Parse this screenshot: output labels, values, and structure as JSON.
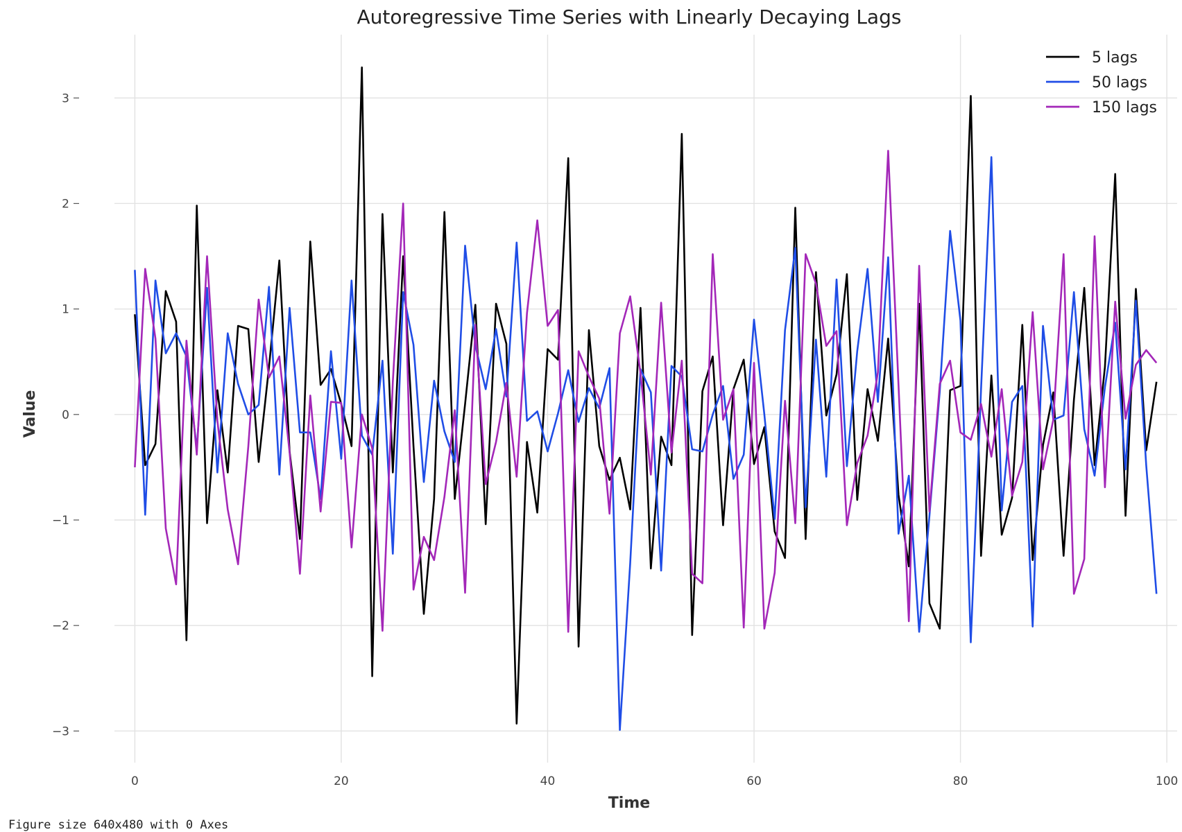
{
  "footer": "Figure size 640x480 with 0 Axes",
  "chart_data": {
    "type": "line",
    "title": "Autoregressive Time Series with Linearly Decaying Lags",
    "xlabel": "Time",
    "ylabel": "Value",
    "xlim": [
      -5,
      101
    ],
    "ylim": [
      -3.3,
      3.6
    ],
    "xticks": [
      0,
      20,
      40,
      60,
      80,
      100
    ],
    "yticks": [
      -3,
      -2,
      -1,
      0,
      1,
      2,
      3
    ],
    "ytick_labels": [
      "−3",
      "−2",
      "−1",
      "0",
      "1",
      "2",
      "3"
    ],
    "grid": true,
    "legend_position": "top-right",
    "x": [
      0,
      1,
      2,
      3,
      4,
      5,
      6,
      7,
      8,
      9,
      10,
      11,
      12,
      13,
      14,
      15,
      16,
      17,
      18,
      19,
      20,
      21,
      22,
      23,
      24,
      25,
      26,
      27,
      28,
      29,
      30,
      31,
      32,
      33,
      34,
      35,
      36,
      37,
      38,
      39,
      40,
      41,
      42,
      43,
      44,
      45,
      46,
      47,
      48,
      49,
      50,
      51,
      52,
      53,
      54,
      55,
      56,
      57,
      58,
      59,
      60,
      61,
      62,
      63,
      64,
      65,
      66,
      67,
      68,
      69,
      70,
      71,
      72,
      73,
      74,
      75,
      76,
      77,
      78,
      79,
      80,
      81,
      82,
      83,
      84,
      85,
      86,
      87,
      88,
      89,
      90,
      91,
      92,
      93,
      94,
      95,
      96,
      97,
      98,
      99
    ],
    "series": [
      {
        "name": "5 lags",
        "color": "#000000",
        "values": [
          0.95,
          -0.48,
          -0.28,
          1.17,
          0.88,
          -2.14,
          1.98,
          -1.03,
          0.23,
          -0.55,
          0.84,
          0.81,
          -0.45,
          0.45,
          1.46,
          -0.35,
          -1.18,
          1.64,
          0.28,
          0.43,
          0.1,
          -0.3,
          3.29,
          -2.48,
          1.9,
          -0.55,
          1.5,
          -0.3,
          -1.89,
          -0.8,
          1.92,
          -0.8,
          0.1,
          1.04,
          -1.04,
          1.05,
          0.67,
          -2.93,
          -0.26,
          -0.93,
          0.62,
          0.52,
          2.43,
          -2.2,
          0.8,
          -0.3,
          -0.62,
          -0.41,
          -0.9,
          1.01,
          -1.46,
          -0.21,
          -0.48,
          2.66,
          -2.09,
          0.22,
          0.55,
          -1.05,
          0.24,
          0.52,
          -0.47,
          -0.12,
          -1.11,
          -1.36,
          1.96,
          -1.18,
          1.35,
          -0.01,
          0.38,
          1.33,
          -0.81,
          0.24,
          -0.25,
          0.72,
          -0.76,
          -1.44,
          1.05,
          -1.79,
          -2.03,
          0.23,
          0.27,
          3.02,
          -1.34,
          0.37,
          -1.14,
          -0.79,
          0.85,
          -1.38,
          -0.29,
          0.21,
          -1.34,
          0.14,
          1.2,
          -0.48,
          0.45,
          2.28,
          -0.96,
          1.19,
          -0.34,
          0.31
        ]
      },
      {
        "name": "50 lags",
        "color": "#1f4de6",
        "values": [
          1.37,
          -0.95,
          1.27,
          0.58,
          0.77,
          0.55,
          -0.33,
          1.2,
          -0.55,
          0.77,
          0.29,
          0.0,
          0.09,
          1.21,
          -0.57,
          1.01,
          -0.17,
          -0.17,
          -0.8,
          0.6,
          -0.42,
          1.27,
          -0.2,
          -0.38,
          0.51,
          -1.32,
          1.16,
          0.66,
          -0.64,
          0.32,
          -0.16,
          -0.45,
          1.6,
          0.65,
          0.24,
          0.81,
          0.17,
          1.63,
          -0.06,
          0.03,
          -0.35,
          0.01,
          0.42,
          -0.07,
          0.25,
          0.06,
          0.44,
          -2.99,
          -1.41,
          0.43,
          0.21,
          -1.48,
          0.46,
          0.36,
          -0.33,
          -0.35,
          0.0,
          0.27,
          -0.61,
          -0.38,
          0.9,
          0.0,
          -0.99,
          0.8,
          1.58,
          -0.88,
          0.71,
          -0.59,
          1.28,
          -0.49,
          0.6,
          1.38,
          0.12,
          1.49,
          -1.13,
          -0.58,
          -2.06,
          -0.96,
          0.22,
          1.74,
          0.89,
          -2.16,
          0.24,
          2.44,
          -0.91,
          0.12,
          0.27,
          -2.01,
          0.84,
          -0.05,
          -0.01,
          1.16,
          -0.14,
          -0.58,
          0.26,
          0.87,
          -0.52,
          1.08,
          -0.48,
          -1.7
        ]
      },
      {
        "name": "150 lags",
        "color": "#a327b8",
        "values": [
          -0.5,
          1.38,
          0.72,
          -1.08,
          -1.61,
          0.7,
          -0.38,
          1.5,
          -0.06,
          -0.9,
          -1.42,
          -0.3,
          1.09,
          0.35,
          0.55,
          -0.36,
          -1.51,
          0.18,
          -0.92,
          0.12,
          0.11,
          -1.26,
          0.0,
          -0.32,
          -2.05,
          0.31,
          2.0,
          -1.66,
          -1.16,
          -1.38,
          -0.78,
          0.04,
          -1.69,
          0.85,
          -0.66,
          -0.26,
          0.3,
          -0.59,
          0.96,
          1.84,
          0.84,
          0.99,
          -2.06,
          0.6,
          0.36,
          0.15,
          -0.94,
          0.77,
          1.12,
          0.39,
          -0.57,
          1.06,
          -0.36,
          0.51,
          -1.51,
          -1.6,
          1.52,
          -0.05,
          0.24,
          -2.02,
          0.49,
          -2.03,
          -1.5,
          0.13,
          -1.03,
          1.52,
          1.24,
          0.65,
          0.79,
          -1.05,
          -0.46,
          -0.2,
          0.4,
          2.5,
          0.28,
          -1.96,
          1.41,
          -0.92,
          0.29,
          0.51,
          -0.17,
          -0.24,
          0.1,
          -0.4,
          0.24,
          -0.77,
          -0.45,
          0.97,
          -0.52,
          -0.05,
          1.52,
          -1.7,
          -1.37,
          1.69,
          -0.69,
          1.07,
          -0.04,
          0.47,
          0.61,
          0.49
        ]
      }
    ]
  }
}
